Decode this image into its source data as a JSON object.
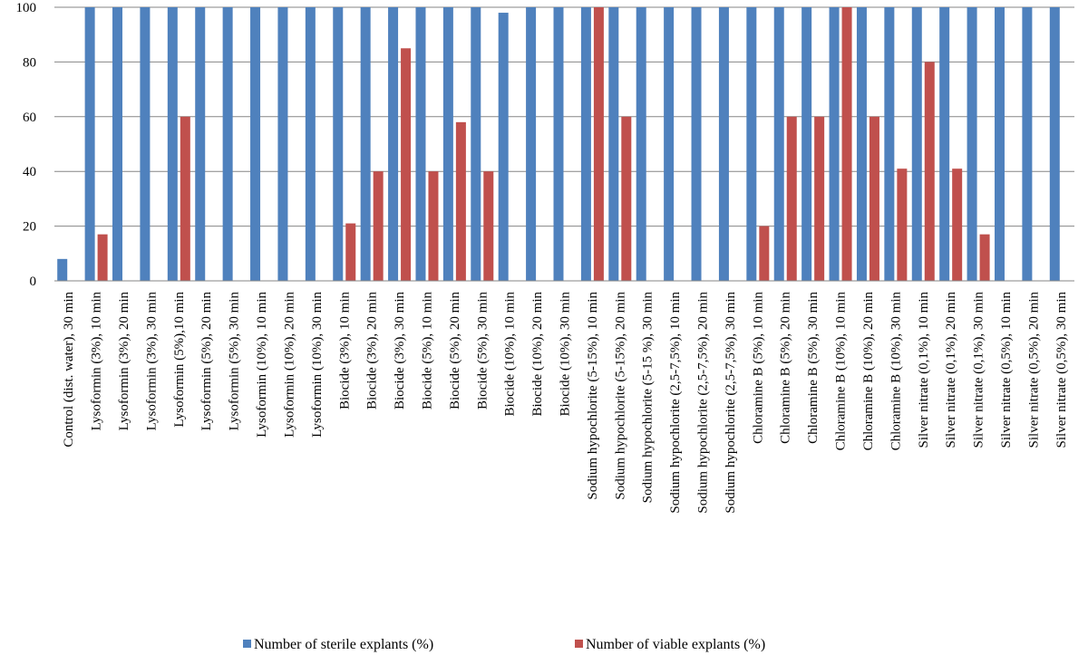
{
  "chart_data": {
    "type": "bar",
    "title": "",
    "xlabel": "",
    "ylabel": "",
    "ylim": [
      0,
      100
    ],
    "yticks": [
      0,
      20,
      40,
      60,
      80,
      100
    ],
    "grid": true,
    "legend_position": "bottom",
    "categories": [
      "Control (dist. water), 30 min",
      "Lysoformin  (3%), 10 min",
      "Lysoformin  (3%), 20 min",
      "Lysoformin  (3%), 30 min",
      "Lysoformin  (5%),10 min",
      "Lysoformin  (5%), 20 min",
      "Lysoformin  (5%), 30 min",
      "Lysoformin  (10%), 10 min",
      "Lysoformin  (10%), 20 min",
      "Lysoformin  (10%), 30 min",
      "Biocide (3%), 10 min",
      "Biocide (3%), 20 min",
      "Biocide (3%), 30 min",
      "Biocide (5%), 10 min",
      "Biocide (5%), 20 min",
      "Biocide (5%), 30 min",
      "Biocide (10%), 10 min",
      "Biocide (10%), 20 min",
      "Biocide (10%), 30 min",
      "Sodium hypochlorite (5-15%), 10 min",
      "Sodium hypochlorite (5-15%), 20 min",
      "Sodium hypochlorite (5-15 %), 30 min",
      "Sodium hypochlorite (2,5-7,5%), 10 min",
      "Sodium hypochlorite (2,5-7,5%), 20 min",
      "Sodium hypochlorite (2,5-7,5%), 30 min",
      "Chloramine B (5%), 10 min",
      "Chloramine B (5%), 20 min",
      "Chloramine B (5%), 30 min",
      "Chloramine B (10%), 10 min",
      "Chloramine B (10%), 20 min",
      "Chloramine B (10%), 30 min",
      "Silver nitrate (0,1%), 10 min",
      "Silver nitrate (0,1%), 20 min",
      "Silver nitrate (0,1%), 30 min",
      "Silver nitrate (0,5%), 10 min",
      "Silver nitrate (0,5%), 20 min",
      "Silver nitrate (0,5%), 30 min"
    ],
    "series": [
      {
        "name": "Number of sterile explants (%)",
        "color": "#4F81BD",
        "values": [
          8,
          100,
          100,
          100,
          100,
          100,
          100,
          100,
          100,
          100,
          100,
          100,
          100,
          100,
          100,
          100,
          98,
          100,
          100,
          100,
          100,
          100,
          100,
          100,
          100,
          100,
          100,
          100,
          100,
          100,
          100,
          100,
          100,
          100,
          100,
          100,
          100
        ]
      },
      {
        "name": "Number of viable explants (%)",
        "color": "#C0504D",
        "values": [
          0,
          17,
          0,
          0,
          60,
          0,
          0,
          0,
          0,
          0,
          21,
          40,
          85,
          40,
          58,
          40,
          0,
          0,
          0,
          100,
          60,
          0,
          0,
          0,
          0,
          20,
          60,
          60,
          100,
          60,
          41,
          80,
          41,
          17,
          0,
          0,
          0
        ]
      }
    ]
  },
  "colors": {
    "grid": "#868686",
    "axis": "#868686"
  }
}
